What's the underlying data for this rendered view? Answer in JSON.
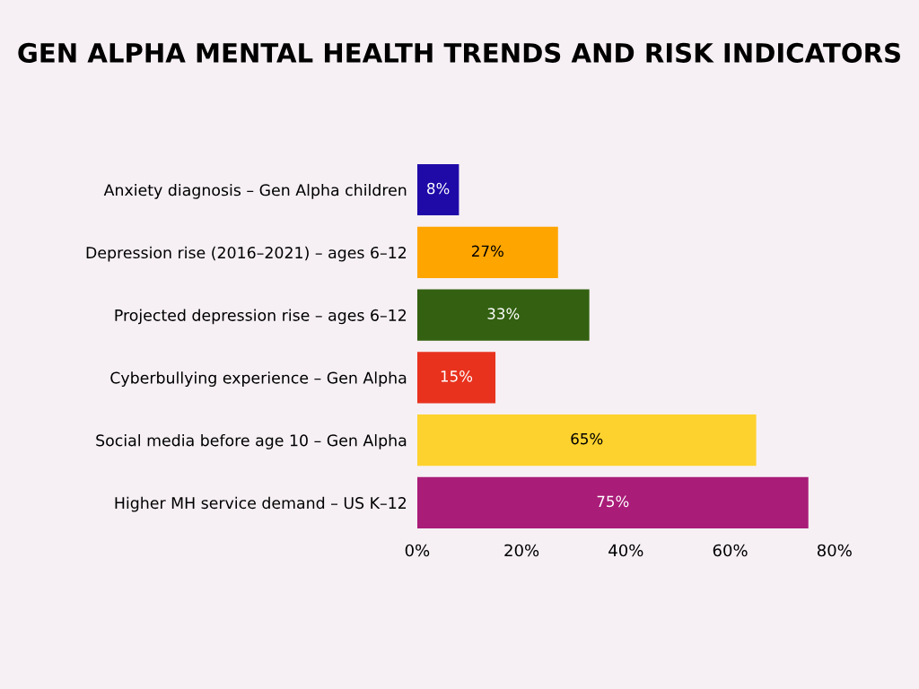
{
  "chart_data": {
    "type": "bar",
    "orientation": "horizontal",
    "title": "GEN ALPHA MENTAL HEALTH TRENDS AND RISK INDICATORS",
    "categories": [
      "Anxiety diagnosis – Gen Alpha children",
      "Depression rise (2016–2021) – ages 6–12",
      "Projected depression rise – ages 6–12",
      "Cyberbullying experience – Gen Alpha",
      "Social media before age 10 – Gen Alpha",
      "Higher MH service demand – US K–12"
    ],
    "values": [
      8,
      27,
      33,
      15,
      65,
      75
    ],
    "value_labels": [
      "8%",
      "27%",
      "33%",
      "15%",
      "65%",
      "75%"
    ],
    "colors": [
      "#1f0aa8",
      "#ffa500",
      "#336111",
      "#e8321e",
      "#fdd22e",
      "#a91c78"
    ],
    "xlim": [
      0,
      80
    ],
    "xticks": [
      {
        "value": 0,
        "label": "0%"
      },
      {
        "value": 20,
        "label": "20%"
      },
      {
        "value": 40,
        "label": "40%"
      },
      {
        "value": 60,
        "label": "60%"
      },
      {
        "value": 80,
        "label": "80%"
      }
    ],
    "grid": false,
    "legend": false
  }
}
